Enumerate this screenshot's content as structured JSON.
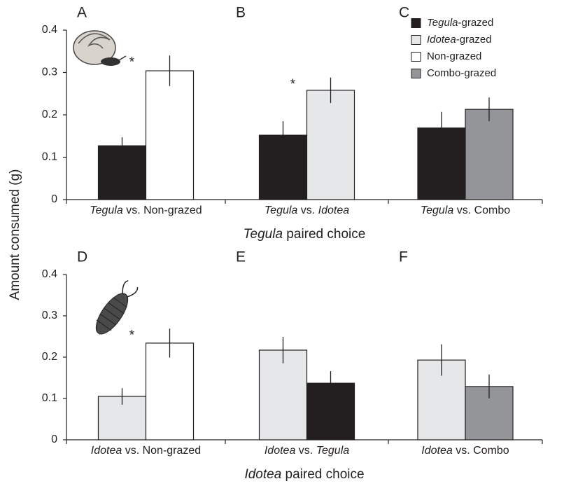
{
  "y_label": "Amount consumed (g)",
  "legend": [
    {
      "name": [
        {
          "text": "Tegula",
          "italic": true
        },
        {
          "text": "-grazed"
        }
      ],
      "color": "#231f20"
    },
    {
      "name": [
        {
          "text": "Idotea",
          "italic": true
        },
        {
          "text": "-grazed"
        }
      ],
      "color": "#e6e7e8"
    },
    {
      "name": [
        {
          "text": "Non-grazed"
        }
      ],
      "color": "#ffffff"
    },
    {
      "name": [
        {
          "text": "Combo-grazed"
        }
      ],
      "color": "#939598"
    }
  ],
  "group_labels": [
    [
      {
        "text": "Tegula",
        "italic": true
      },
      {
        "text": " paired choice"
      }
    ],
    [
      {
        "text": "Idotea",
        "italic": true
      },
      {
        "text": " paired choice"
      }
    ]
  ],
  "chart_data": [
    {
      "type": "bar",
      "title": "A",
      "xlabel": [
        {
          "text": "Tegula",
          "italic": true
        },
        {
          "text": " vs. Non-grazed"
        }
      ],
      "values": [
        0.127,
        0.304
      ],
      "errors": [
        0.02,
        0.036
      ],
      "colors": [
        "#231f20",
        "#ffffff"
      ],
      "ylim": [
        0,
        0.4
      ],
      "yticks": [
        0,
        0.1,
        0.2,
        0.3,
        0.4
      ],
      "annotation": "*"
    },
    {
      "type": "bar",
      "title": "B",
      "xlabel": [
        {
          "text": "Tegula",
          "italic": true
        },
        {
          "text": " vs. "
        },
        {
          "text": "Idotea",
          "italic": true
        }
      ],
      "values": [
        0.152,
        0.258
      ],
      "errors": [
        0.033,
        0.03
      ],
      "colors": [
        "#231f20",
        "#e6e7e8"
      ],
      "ylim": [
        0,
        0.4
      ],
      "annotation": "*"
    },
    {
      "type": "bar",
      "title": "C",
      "xlabel": [
        {
          "text": "Tegula",
          "italic": true
        },
        {
          "text": " vs. Combo"
        }
      ],
      "values": [
        0.169,
        0.213
      ],
      "errors": [
        0.038,
        0.028
      ],
      "colors": [
        "#231f20",
        "#939598"
      ],
      "ylim": [
        0,
        0.4
      ]
    },
    {
      "type": "bar",
      "title": "D",
      "xlabel": [
        {
          "text": "Idotea",
          "italic": true
        },
        {
          "text": " vs. Non-grazed"
        }
      ],
      "values": [
        0.105,
        0.234
      ],
      "errors": [
        0.02,
        0.035
      ],
      "colors": [
        "#e6e7e8",
        "#ffffff"
      ],
      "ylim": [
        0,
        0.4
      ],
      "yticks": [
        0,
        0.1,
        0.2,
        0.3,
        0.4
      ],
      "annotation": "*"
    },
    {
      "type": "bar",
      "title": "E",
      "xlabel": [
        {
          "text": "Idotea",
          "italic": true
        },
        {
          "text": " vs. "
        },
        {
          "text": "Tegula",
          "italic": true
        }
      ],
      "values": [
        0.217,
        0.137
      ],
      "errors": [
        0.032,
        0.029
      ],
      "colors": [
        "#e6e7e8",
        "#231f20"
      ],
      "ylim": [
        0,
        0.4
      ]
    },
    {
      "type": "bar",
      "title": "F",
      "xlabel": [
        {
          "text": "Idotea",
          "italic": true
        },
        {
          "text": " vs. Combo"
        }
      ],
      "values": [
        0.193,
        0.129
      ],
      "errors": [
        0.038,
        0.029
      ],
      "colors": [
        "#e6e7e8",
        "#939598"
      ],
      "ylim": [
        0,
        0.4
      ]
    }
  ]
}
